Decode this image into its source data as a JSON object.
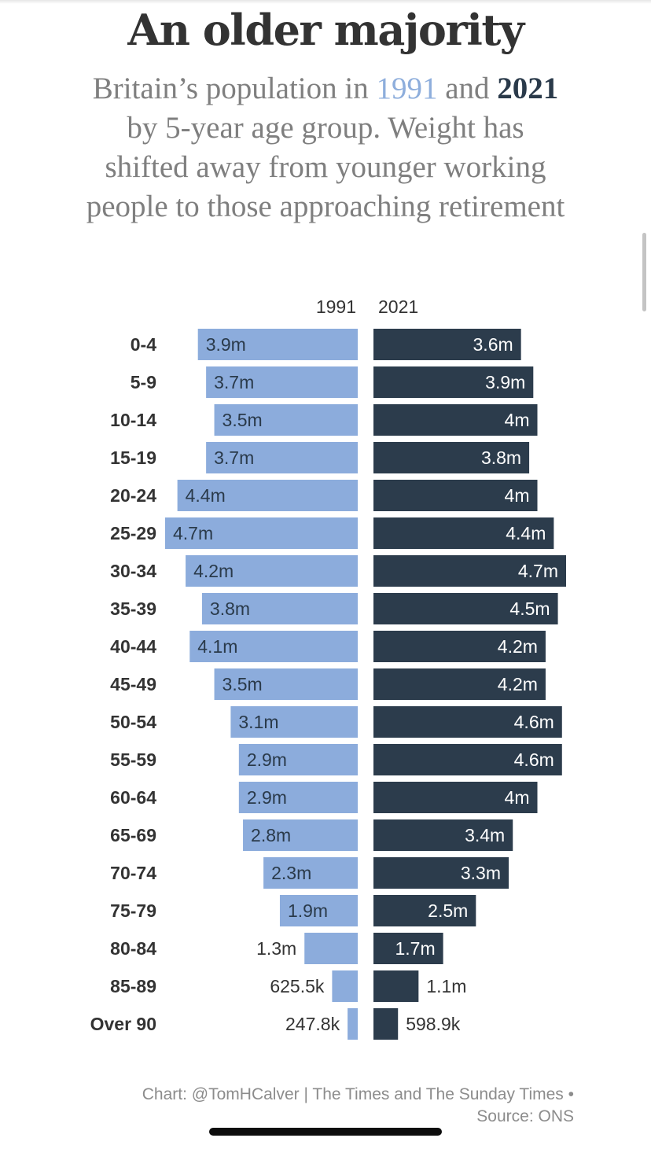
{
  "title": "An older majority",
  "subtitle": {
    "before": "Britain’s population in ",
    "year_a": "1991",
    "middle": " and ",
    "year_b": "2021",
    "after": " by 5-year age group. Weight has shifted away from younger working people to those approaching retirement"
  },
  "colors": {
    "series_1991": "#8cacdc",
    "series_2021": "#2c3c4c",
    "label_on_light": "#2a3a4a",
    "label_on_dark": "#ffffff",
    "label_outside": "#333333",
    "axis_text": "#333333"
  },
  "chart_data": {
    "type": "bar",
    "orientation": "horizontal-butterfly",
    "categories": [
      "0-4",
      "5-9",
      "10-14",
      "15-19",
      "20-24",
      "25-29",
      "30-34",
      "35-39",
      "40-44",
      "45-49",
      "50-54",
      "55-59",
      "60-64",
      "65-69",
      "70-74",
      "75-79",
      "80-84",
      "85-89",
      "Over 90"
    ],
    "series": [
      {
        "name": "1991",
        "side": "left",
        "values": [
          3.9,
          3.7,
          3.5,
          3.7,
          4.4,
          4.7,
          4.2,
          3.8,
          4.1,
          3.5,
          3.1,
          2.9,
          2.9,
          2.8,
          2.3,
          1.9,
          1.3,
          0.6255,
          0.2478
        ],
        "labels": [
          "3.9m",
          "3.7m",
          "3.5m",
          "3.7m",
          "4.4m",
          "4.7m",
          "4.2m",
          "3.8m",
          "4.1m",
          "3.5m",
          "3.1m",
          "2.9m",
          "2.9m",
          "2.8m",
          "2.3m",
          "1.9m",
          "1.3m",
          "625.5k",
          "247.8k"
        ]
      },
      {
        "name": "2021",
        "side": "right",
        "values": [
          3.6,
          3.9,
          4.0,
          3.8,
          4.0,
          4.4,
          4.7,
          4.5,
          4.2,
          4.2,
          4.6,
          4.6,
          4.0,
          3.4,
          3.3,
          2.5,
          1.7,
          1.1,
          0.5989
        ],
        "labels": [
          "3.6m",
          "3.9m",
          "4m",
          "3.8m",
          "4m",
          "4.4m",
          "4.7m",
          "4.5m",
          "4.2m",
          "4.2m",
          "4.6m",
          "4.6m",
          "4m",
          "3.4m",
          "3.3m",
          "2.5m",
          "1.7m",
          "1.1m",
          "598.9k"
        ]
      }
    ],
    "unit": "millions",
    "value_max": 4.7
  },
  "footer": {
    "line1": "Chart: @TomHCalver | The Times and The Sunday Times •",
    "line2": "Source: ONS"
  }
}
